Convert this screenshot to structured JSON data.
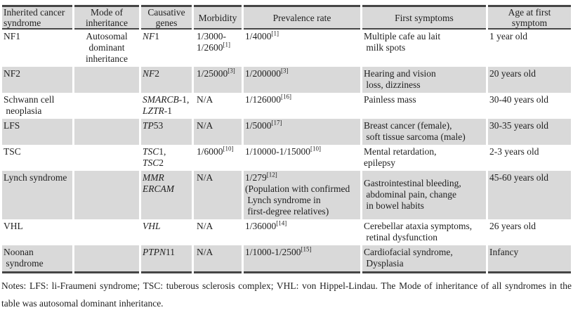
{
  "table": {
    "columns": [
      {
        "key": "syndrome",
        "label": "Inherited cancer\nsyndrome"
      },
      {
        "key": "inheritance",
        "label": "Mode of\ninheritance"
      },
      {
        "key": "genes",
        "label": "Causative\ngenes"
      },
      {
        "key": "morbidity",
        "label": "Morbidity"
      },
      {
        "key": "prevalence",
        "label": "Prevalence rate"
      },
      {
        "key": "symptoms",
        "label": "First symptoms"
      },
      {
        "key": "age",
        "label": "Age at first\nsymptom"
      }
    ],
    "rows": [
      {
        "syndrome": "NF1",
        "inheritance": "Autosomal\ndominant\ninheritance",
        "genes": [
          {
            "italic": "NF",
            "plain": "1"
          }
        ],
        "morbidity": {
          "text": "1/3000-\n1/2600",
          "ref": "[1]"
        },
        "prevalence": {
          "text": "1/4000",
          "ref": "[1]",
          "note": ""
        },
        "symptoms": "Multiple cafe au lait\n milk spots",
        "age": "1 year old"
      },
      {
        "syndrome": "NF2",
        "inheritance": "",
        "genes": [
          {
            "italic": "NF",
            "plain": "2"
          }
        ],
        "morbidity": {
          "text": "1/25000",
          "ref": "[3]"
        },
        "prevalence": {
          "text": "1/200000",
          "ref": "[3]",
          "note": ""
        },
        "symptoms": "Hearing and vision\n loss, dizziness",
        "age": "20 years old"
      },
      {
        "syndrome": "Schwann cell\n neoplasia",
        "inheritance": "",
        "genes": [
          {
            "italic": "SMARCB",
            "plain": "-1,"
          },
          {
            "italic": "LZTR",
            "plain": "-1"
          }
        ],
        "morbidity": {
          "text": "N/A",
          "ref": ""
        },
        "prevalence": {
          "text": "1/126000",
          "ref": "[16]",
          "note": ""
        },
        "symptoms": "Painless mass",
        "age": "30-40 years old"
      },
      {
        "syndrome": "LFS",
        "inheritance": "",
        "genes": [
          {
            "italic": "TP",
            "plain": "53"
          }
        ],
        "morbidity": {
          "text": "N/A",
          "ref": ""
        },
        "prevalence": {
          "text": "1/5000",
          "ref": "[17]",
          "note": ""
        },
        "symptoms": "Breast cancer (female),\n soft tissue sarcoma (male)",
        "age": "30-35 years old"
      },
      {
        "syndrome": "TSC",
        "inheritance": "",
        "genes": [
          {
            "italic": "TSC",
            "plain": "1,"
          },
          {
            "italic": "TSC",
            "plain": "2"
          }
        ],
        "morbidity": {
          "text": "1/6000",
          "ref": "[10]"
        },
        "prevalence": {
          "text": "1/10000-1/15000",
          "ref": "[10]",
          "note": ""
        },
        "symptoms": "Mental retardation,\nepilepsy",
        "age": "2-3 years old"
      },
      {
        "syndrome": "Lynch syndrome",
        "inheritance": "",
        "genes": [
          {
            "italic": "MMR",
            "plain": ""
          },
          {
            "italic": "ERCAM",
            "plain": ""
          }
        ],
        "morbidity": {
          "text": "N/A",
          "ref": ""
        },
        "prevalence": {
          "text": "1/279",
          "ref": "[12]",
          "note": "(Population with confirmed\n Lynch syndrome in\n first-degree relatives)"
        },
        "symptoms": "Gastrointestinal bleeding,\n abdominal pain, change\n in bowel habits",
        "age": "45-60 years old"
      },
      {
        "syndrome": "VHL",
        "inheritance": "",
        "genes": [
          {
            "italic": "VHL",
            "plain": ""
          }
        ],
        "morbidity": {
          "text": "N/A",
          "ref": ""
        },
        "prevalence": {
          "text": "1/36000",
          "ref": "[14]",
          "note": ""
        },
        "symptoms": "Cerebellar ataxia symptoms,\n retinal dysfunction",
        "age": "26 years old"
      },
      {
        "syndrome": "Noonan\n syndrome",
        "inheritance": "",
        "genes": [
          {
            "italic": "PTPN",
            "plain": "11"
          }
        ],
        "morbidity": {
          "text": "N/A",
          "ref": ""
        },
        "prevalence": {
          "text": "1/1000-1/2500",
          "ref": "[15]",
          "note": ""
        },
        "symptoms": "Cardiofacial syndrome,\n Dysplasia",
        "age": "Infancy"
      }
    ]
  },
  "notes": {
    "line1": "Notes: LFS: li-Fraumeni syndrome; TSC: tuberous sclerosis complex; VHL: von Hippel-Lindau. The Mode of inheritance of all syndromes in the",
    "line2": "table was autosomal dominant inheritance."
  },
  "colors": {
    "stripe": "#d9d9d9",
    "border": "#454545",
    "text": "#1f1f1f"
  }
}
